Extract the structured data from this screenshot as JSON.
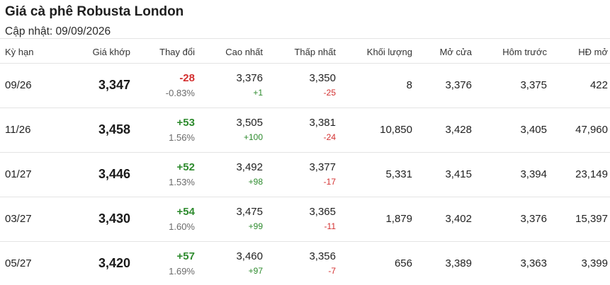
{
  "title": "Giá cà phê Robusta London",
  "updated": "Cập nhật: 09/09/2026",
  "colors": {
    "positive": "#2e8b2e",
    "negative": "#d32f2f"
  },
  "headers": {
    "term": "Kỳ hạn",
    "price": "Giá khớp",
    "change": "Thay đổi",
    "high": "Cao nhất",
    "low": "Thấp nhất",
    "volume": "Khối lượng",
    "open": "Mở cửa",
    "prev": "Hôm trước",
    "oi": "HĐ mở"
  },
  "rows": [
    {
      "term": "09/26",
      "price": "3,347",
      "change": "-28",
      "change_dir": "neg",
      "pct": "-0.83%",
      "high": "3,376",
      "high_diff": "+1",
      "low": "3,350",
      "low_diff": "-25",
      "volume": "8",
      "open": "3,376",
      "prev": "3,375",
      "oi": "422"
    },
    {
      "term": "11/26",
      "price": "3,458",
      "change": "+53",
      "change_dir": "pos",
      "pct": "1.56%",
      "high": "3,505",
      "high_diff": "+100",
      "low": "3,381",
      "low_diff": "-24",
      "volume": "10,850",
      "open": "3,428",
      "prev": "3,405",
      "oi": "47,960"
    },
    {
      "term": "01/27",
      "price": "3,446",
      "change": "+52",
      "change_dir": "pos",
      "pct": "1.53%",
      "high": "3,492",
      "high_diff": "+98",
      "low": "3,377",
      "low_diff": "-17",
      "volume": "5,331",
      "open": "3,415",
      "prev": "3,394",
      "oi": "23,149"
    },
    {
      "term": "03/27",
      "price": "3,430",
      "change": "+54",
      "change_dir": "pos",
      "pct": "1.60%",
      "high": "3,475",
      "high_diff": "+99",
      "low": "3,365",
      "low_diff": "-11",
      "volume": "1,879",
      "open": "3,402",
      "prev": "3,376",
      "oi": "15,397"
    },
    {
      "term": "05/27",
      "price": "3,420",
      "change": "+57",
      "change_dir": "pos",
      "pct": "1.69%",
      "high": "3,460",
      "high_diff": "+97",
      "low": "3,356",
      "low_diff": "-7",
      "volume": "656",
      "open": "3,389",
      "prev": "3,363",
      "oi": "3,399"
    }
  ]
}
